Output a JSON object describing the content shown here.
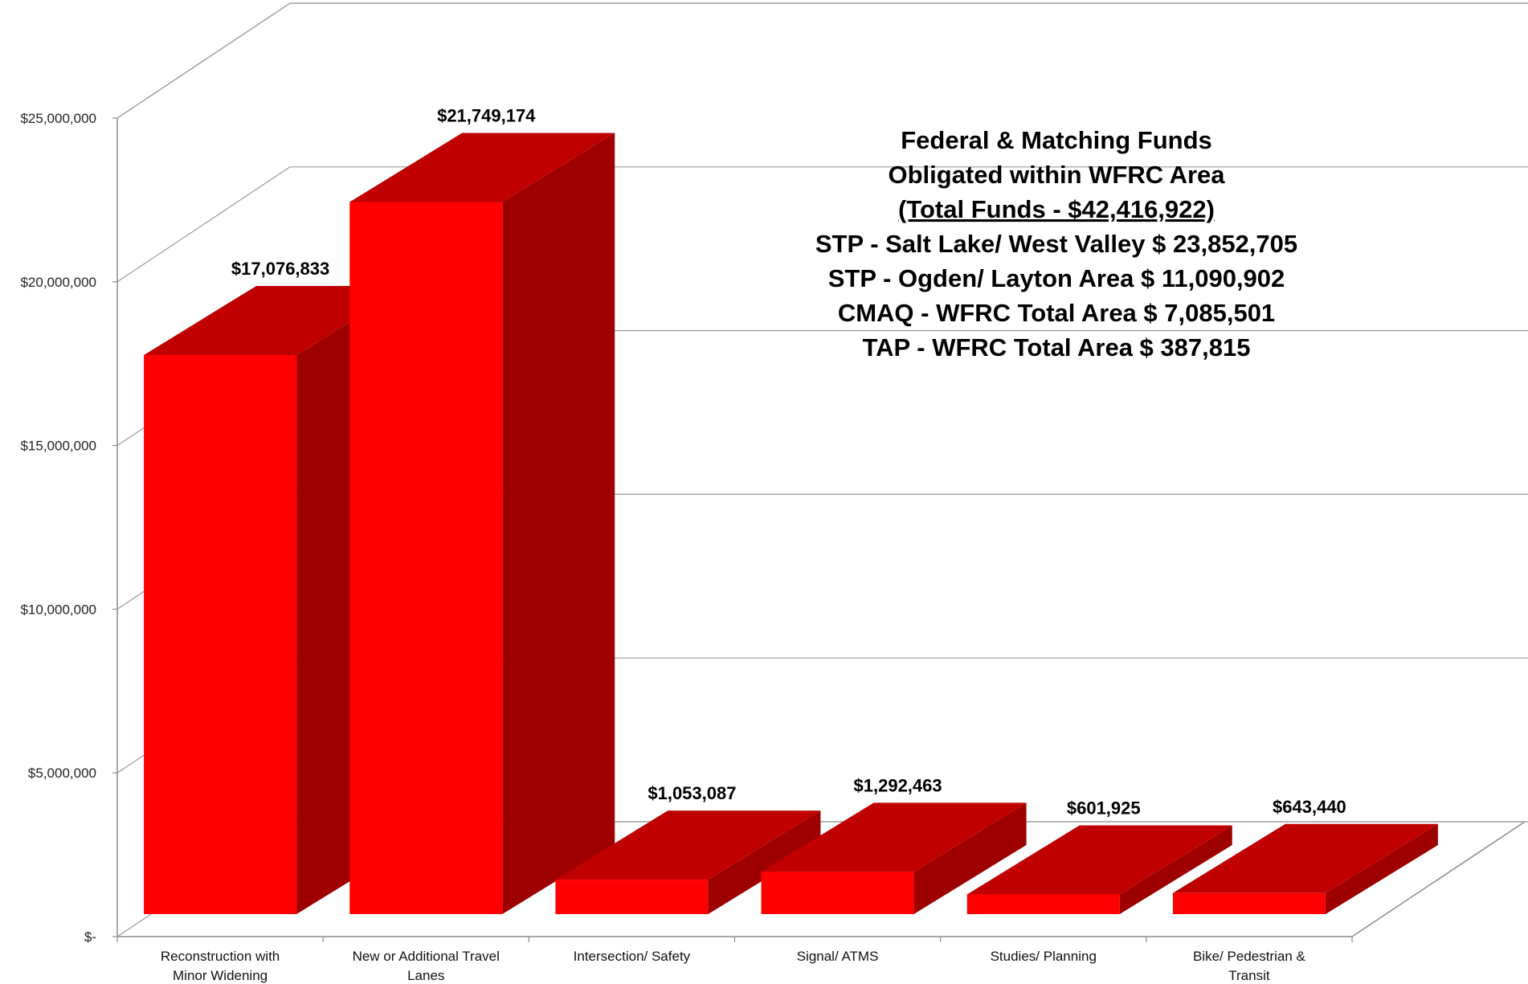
{
  "colors": {
    "bar_front": "#ff0000",
    "bar_top": "#c00000",
    "bar_side": "#9e0000",
    "grid": "#9a9a9a",
    "axis": "#8c8c8c"
  },
  "chart_data": {
    "type": "bar",
    "style": "3d-column",
    "categories": [
      [
        "Reconstruction with",
        "Minor Widening"
      ],
      [
        "New or Additional Travel",
        "Lanes"
      ],
      [
        "Intersection/ Safety"
      ],
      [
        "Signal/ ATMS"
      ],
      [
        "Studies/ Planning"
      ],
      [
        "Bike/ Pedestrian &",
        "Transit"
      ]
    ],
    "values": [
      17076833,
      21749174,
      1053087,
      1292463,
      601925,
      643440
    ],
    "data_labels": [
      "$17,076,833",
      "$21,749,174",
      "$1,053,087",
      "$1,292,463",
      "$601,925",
      "$643,440"
    ],
    "ylim": [
      0,
      25000000
    ],
    "yticks": [
      0,
      5000000,
      10000000,
      15000000,
      20000000,
      25000000
    ],
    "ytick_labels": [
      "$-",
      "$5,000,000",
      "$10,000,000",
      "$15,000,000",
      "$20,000,000",
      "$25,000,000"
    ],
    "grid": true,
    "legend": "none",
    "annotation": {
      "lines": [
        "Federal & Matching Funds",
        "Obligated  within WFRC Area",
        "(Total Funds - $42,416,922)",
        "STP - Salt Lake/ West Valley $ 23,852,705",
        "STP - Ogden/ Layton Area $ 11,090,902",
        "CMAQ - WFRC Total Area $ 7,085,501",
        "TAP - WFRC Total Area $ 387,815"
      ],
      "underlined_line": 2
    }
  }
}
